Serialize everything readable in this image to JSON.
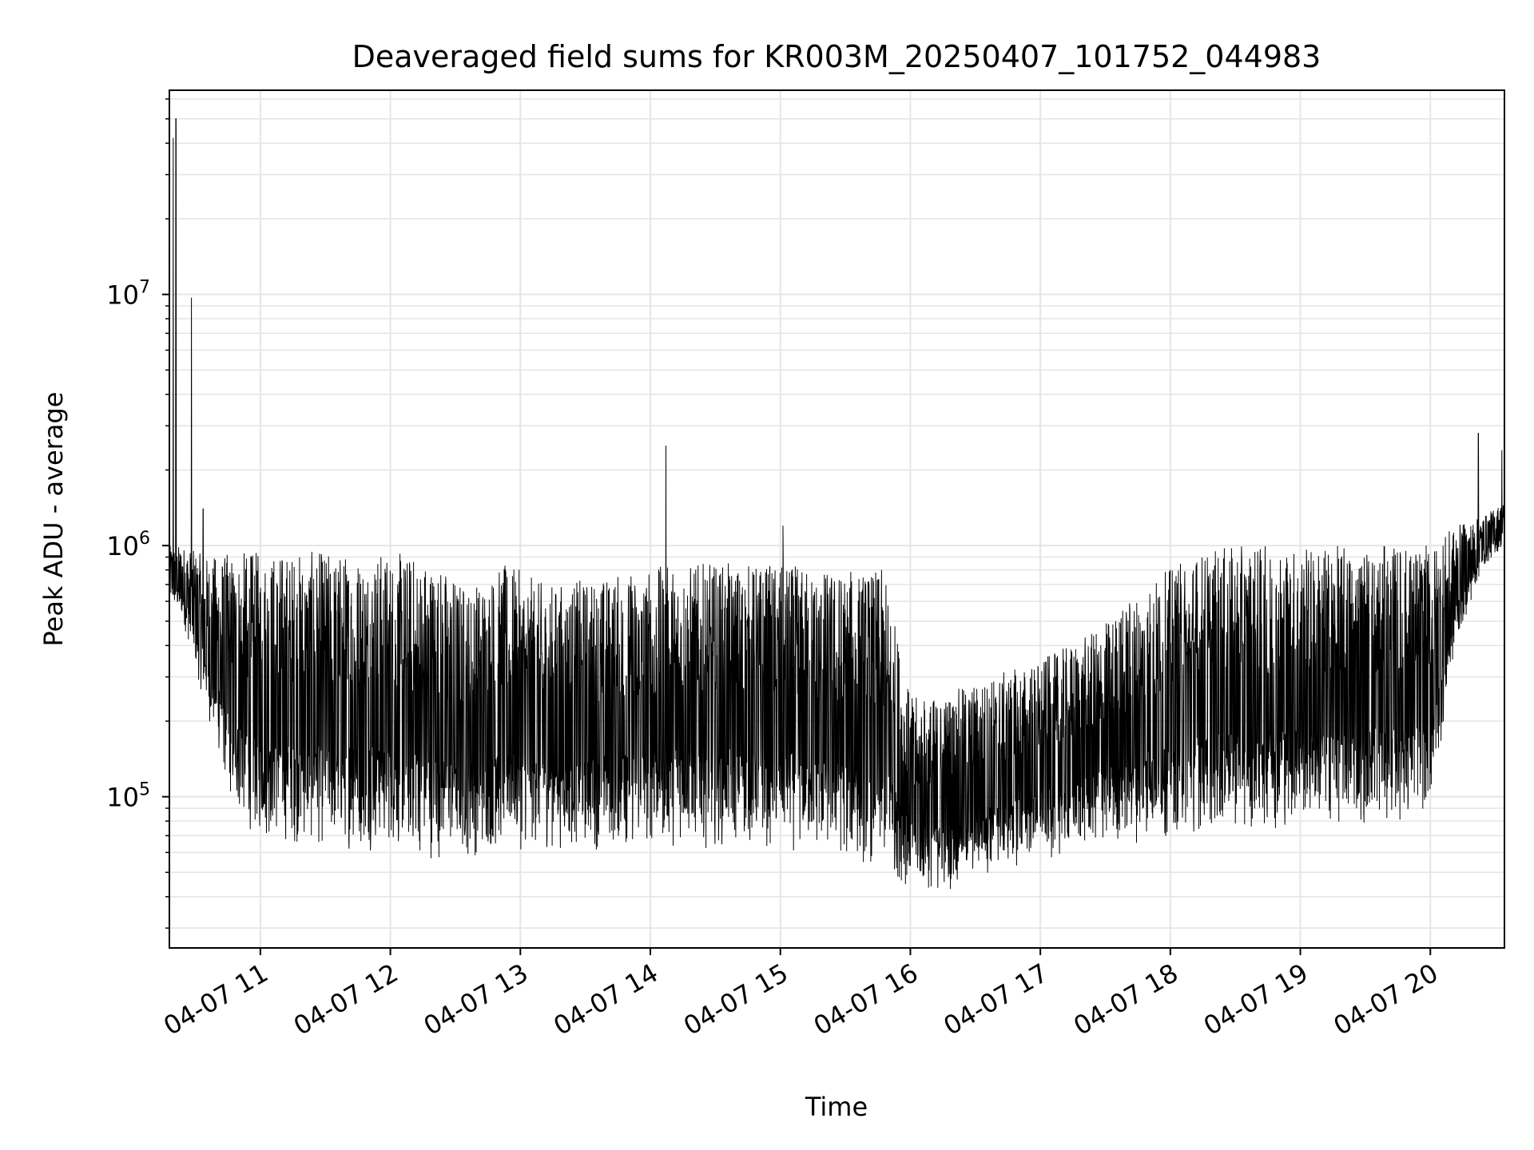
{
  "chart_data": {
    "type": "line",
    "title": "Deaveraged field sums for KR003M_20250407_101752_044983",
    "xlabel": "Time",
    "ylabel": "Peak ADU - average",
    "yscale": "log",
    "ylim": [
      25000,
      65000000
    ],
    "xlim_hours": [
      10.3,
      20.57
    ],
    "grid": true,
    "line_color": "#000000",
    "grid_color": "#e5e5e5",
    "x_ticks": [
      {
        "value": 11,
        "label": "04-07 11"
      },
      {
        "value": 12,
        "label": "04-07 12"
      },
      {
        "value": 13,
        "label": "04-07 13"
      },
      {
        "value": 14,
        "label": "04-07 14"
      },
      {
        "value": 15,
        "label": "04-07 15"
      },
      {
        "value": 16,
        "label": "04-07 16"
      },
      {
        "value": 17,
        "label": "04-07 17"
      },
      {
        "value": 18,
        "label": "04-07 18"
      },
      {
        "value": 19,
        "label": "04-07 19"
      },
      {
        "value": 20,
        "label": "04-07 20"
      }
    ],
    "y_ticks": [
      {
        "value": 100000,
        "base": "10",
        "exp": "5"
      },
      {
        "value": 1000000,
        "base": "10",
        "exp": "6"
      },
      {
        "value": 10000000,
        "base": "10",
        "exp": "7"
      }
    ],
    "series": [
      {
        "name": "Peak ADU - average",
        "envelope": {
          "x": [
            10.3,
            10.4,
            10.6,
            10.8,
            11.0,
            11.5,
            12.0,
            12.3,
            12.6,
            12.9,
            13.2,
            13.6,
            13.9,
            14.2,
            14.6,
            15.0,
            15.4,
            15.8,
            16.0,
            16.2,
            16.6,
            17.0,
            17.4,
            17.8,
            18.2,
            18.6,
            19.0,
            19.4,
            19.8,
            20.0,
            20.2,
            20.4,
            20.57
          ],
          "low": [
            600000,
            500000,
            200000,
            80000,
            65000,
            60000,
            60000,
            55000,
            55000,
            60000,
            60000,
            60000,
            60000,
            62000,
            62000,
            60000,
            55000,
            50000,
            42000,
            40000,
            48000,
            55000,
            60000,
            65000,
            70000,
            72000,
            75000,
            75000,
            78000,
            85000,
            400000,
            800000,
            1000000
          ],
          "high": [
            1000000,
            1000000,
            900000,
            950000,
            950000,
            950000,
            950000,
            900000,
            700000,
            850000,
            700000,
            750000,
            800000,
            850000,
            850000,
            850000,
            800000,
            800000,
            250000,
            250000,
            300000,
            350000,
            450000,
            700000,
            950000,
            1000000,
            1000000,
            1000000,
            1000000,
            1000000,
            1200000,
            1300000,
            1500000
          ]
        },
        "spikes": [
          {
            "x": 10.33,
            "y": 42000000
          },
          {
            "x": 10.35,
            "y": 50000000
          },
          {
            "x": 10.47,
            "y": 9700000
          },
          {
            "x": 10.56,
            "y": 1400000
          },
          {
            "x": 14.12,
            "y": 2500000
          },
          {
            "x": 15.02,
            "y": 1200000
          },
          {
            "x": 20.37,
            "y": 2800000
          },
          {
            "x": 20.55,
            "y": 2400000
          }
        ]
      }
    ]
  }
}
